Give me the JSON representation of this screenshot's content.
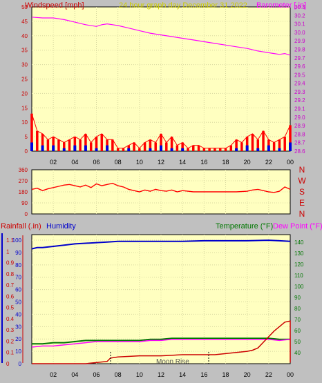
{
  "header": {
    "left_label": "Windspeed [mph]",
    "center_label": "24 hour graph day   December 31 2022",
    "right_label": "Barometer [.in]"
  },
  "direction_axis": {
    "right_labels": [
      "N",
      "W",
      "S",
      "E",
      "N"
    ]
  },
  "lower_header": {
    "rainfall_label": "Rainfall (.in)",
    "humidity_label": "Humidity",
    "temperature_label": "Temperature (°F)",
    "dewpoint_label": "Dew Point (°F)"
  },
  "annotations": {
    "moon_rise": "Moon Rise"
  },
  "colors": {
    "wind": "#ff0000",
    "gust_dark": "#0000dd",
    "gust_green": "#00aa00",
    "baro": "#ff00ff",
    "humidity": "#0000cc",
    "temperature": "#007700",
    "dewpoint": "#ff00ff",
    "rain": "#cc0000",
    "panel": "#ffffc0"
  },
  "chart_data": [
    {
      "type": "line",
      "name": "wind-barometer",
      "x_ticks": [
        "02",
        "04",
        "06",
        "08",
        "10",
        "12",
        "14",
        "16",
        "18",
        "20",
        "22",
        "00"
      ],
      "y_left": {
        "label": "Windspeed [mph]",
        "ticks": [
          0,
          5,
          10,
          15,
          20,
          25,
          30,
          35,
          40,
          45,
          50
        ],
        "lim": [
          0,
          50
        ]
      },
      "y_right": {
        "label": "Barometer [.in]",
        "ticks": [
          28.6,
          28.7,
          28.8,
          28.9,
          29.0,
          29.1,
          29.2,
          29.3,
          29.4,
          29.5,
          29.6,
          29.7,
          29.8,
          29.9,
          30.0,
          30.1,
          30.2,
          30.3
        ],
        "lim": [
          28.6,
          30.3
        ]
      },
      "series": [
        {
          "name": "Barometer",
          "axis": "right",
          "x": [
            0,
            1,
            2,
            3,
            4,
            5,
            6,
            6.5,
            7,
            7.5,
            8,
            9,
            10,
            11,
            12,
            13,
            14,
            15,
            16,
            17,
            18,
            19,
            20,
            21,
            22,
            22.5,
            23,
            23.5,
            24
          ],
          "y": [
            30.18,
            30.17,
            30.17,
            30.15,
            30.12,
            30.09,
            30.07,
            30.09,
            30.1,
            30.09,
            30.08,
            30.05,
            30.02,
            29.99,
            29.97,
            29.95,
            29.93,
            29.91,
            29.89,
            29.87,
            29.85,
            29.83,
            29.81,
            29.78,
            29.76,
            29.75,
            29.74,
            29.75,
            29.73
          ]
        },
        {
          "name": "Wind speed",
          "axis": "left",
          "x": [
            0,
            0.5,
            1,
            1.5,
            2,
            2.5,
            3,
            3.5,
            4,
            4.5,
            5,
            5.5,
            6,
            6.5,
            7,
            7.5,
            8,
            8.5,
            9,
            9.5,
            10,
            10.5,
            11,
            11.5,
            12,
            12.5,
            13,
            13.5,
            14,
            14.5,
            15,
            15.5,
            16,
            16.5,
            17,
            17.5,
            18,
            18.5,
            19,
            19.5,
            20,
            20.5,
            21,
            21.5,
            22,
            22.5,
            23,
            23.5,
            24
          ],
          "y": [
            13,
            7,
            6,
            4,
            5,
            4,
            3,
            4,
            5,
            4,
            6,
            3,
            5,
            6,
            4,
            4,
            1,
            1,
            2,
            3,
            1,
            3,
            4,
            3,
            6,
            3,
            5,
            2,
            3,
            1,
            2,
            2,
            1,
            1,
            1,
            1,
            1,
            2,
            4,
            3,
            5,
            6,
            4,
            7,
            4,
            3,
            4,
            5,
            9
          ]
        },
        {
          "name": "Gust (blue)",
          "axis": "left",
          "x": [
            0,
            1,
            2,
            3,
            4,
            5,
            6,
            7,
            8,
            9,
            10,
            11,
            12,
            13,
            14,
            15,
            16,
            17,
            18,
            19,
            20,
            21,
            22,
            23,
            24
          ],
          "y": [
            3,
            2,
            2,
            1,
            2,
            2,
            1,
            2,
            0,
            1,
            0,
            1,
            2,
            1,
            1,
            0,
            0,
            0,
            0,
            1,
            2,
            1,
            2,
            1,
            3
          ]
        }
      ]
    },
    {
      "type": "line",
      "name": "wind-direction",
      "x_ticks": [
        "02",
        "04",
        "06",
        "08",
        "10",
        "12",
        "14",
        "16",
        "18",
        "20",
        "22",
        "00"
      ],
      "y_left": {
        "ticks": [
          0,
          90,
          180,
          270,
          360
        ],
        "lim": [
          0,
          360
        ]
      },
      "series": [
        {
          "name": "Wind direction",
          "x": [
            0,
            0.5,
            1,
            1.5,
            2,
            2.5,
            3,
            3.5,
            4,
            4.5,
            5,
            5.5,
            6,
            6.5,
            7,
            7.5,
            8,
            8.5,
            9,
            9.5,
            10,
            10.5,
            11,
            11.5,
            12,
            12.5,
            13,
            13.5,
            14,
            14.5,
            15,
            16,
            17,
            18,
            19,
            20,
            20.5,
            21,
            21.5,
            22,
            22.5,
            23,
            23.5,
            24
          ],
          "y": [
            200,
            210,
            190,
            205,
            215,
            225,
            235,
            240,
            230,
            220,
            235,
            215,
            245,
            230,
            240,
            250,
            230,
            220,
            200,
            190,
            180,
            195,
            185,
            200,
            190,
            185,
            195,
            180,
            190,
            185,
            180,
            180,
            180,
            180,
            180,
            185,
            195,
            200,
            190,
            180,
            175,
            185,
            220,
            200
          ]
        }
      ]
    },
    {
      "type": "line",
      "name": "rain-humidity-temperature",
      "x_ticks": [
        "02",
        "04",
        "06",
        "08",
        "10",
        "12",
        "14",
        "16",
        "18",
        "20",
        "22",
        "00"
      ],
      "y_left_outer": {
        "label": "Rainfall (.in)",
        "ticks": [
          0,
          0.1,
          0.2,
          0.3,
          0.4,
          0.5,
          0.6,
          0.7,
          0.8,
          0.9,
          1,
          1.1
        ],
        "lim": [
          0,
          1.15
        ]
      },
      "y_left_inner": {
        "label": "Humidity",
        "ticks": [
          0,
          10,
          20,
          30,
          40,
          50,
          60,
          70,
          80,
          90,
          100
        ],
        "lim": [
          0,
          104.5
        ]
      },
      "y_right": {
        "label": "Temperature (°F)",
        "ticks": [
          40,
          50,
          60,
          70,
          80,
          90,
          100,
          110,
          120,
          130,
          140
        ],
        "lim": [
          30,
          147
        ]
      },
      "series": [
        {
          "name": "Humidity",
          "x": [
            0,
            0.5,
            1,
            2,
            3,
            4,
            5,
            6,
            7,
            8,
            10,
            12,
            14,
            16,
            18,
            20,
            22,
            23,
            24
          ],
          "y": [
            93,
            94,
            94,
            95,
            96,
            97,
            97.5,
            98,
            98.5,
            99,
            99,
            99,
            99,
            99.5,
            99.5,
            99.5,
            100,
            99.5,
            99
          ]
        },
        {
          "name": "Temperature",
          "x": [
            0,
            1,
            2,
            3,
            4,
            5,
            6,
            7,
            8,
            9,
            10,
            11,
            12,
            13,
            14,
            15,
            16,
            17,
            18,
            19,
            20,
            21,
            22,
            23,
            24
          ],
          "y": [
            48,
            48,
            49,
            49,
            50,
            51,
            51,
            51,
            51,
            51,
            51,
            52,
            52,
            53,
            53,
            53,
            53,
            53,
            53,
            53,
            53,
            53,
            53,
            52,
            52
          ]
        },
        {
          "name": "Dew Point",
          "x": [
            0,
            1,
            2,
            3,
            4,
            5,
            6,
            7,
            8,
            9,
            10,
            11,
            12,
            13,
            14,
            15,
            16,
            17,
            18,
            19,
            20,
            21,
            22,
            23,
            24
          ],
          "y": [
            45,
            46,
            46,
            47,
            48,
            49,
            50,
            50,
            50,
            50,
            50,
            51,
            51,
            52,
            52,
            52,
            52,
            52,
            52,
            52,
            52,
            52,
            52,
            51,
            52
          ]
        },
        {
          "name": "Rainfall",
          "x": [
            0,
            2,
            4,
            5,
            6,
            7,
            7.3,
            8,
            10,
            12,
            14,
            16,
            17,
            18,
            19,
            20,
            20.5,
            21,
            21.5,
            22,
            22.5,
            23,
            23.5,
            24,
            24
          ],
          "y": [
            0,
            0,
            0,
            0,
            0.01,
            0.02,
            0.05,
            0.06,
            0.07,
            0.07,
            0.08,
            0.08,
            0.08,
            0.09,
            0.1,
            0.11,
            0.12,
            0.14,
            0.19,
            0.24,
            0.29,
            0.33,
            0.37,
            0.38,
            0.01
          ]
        }
      ]
    }
  ]
}
